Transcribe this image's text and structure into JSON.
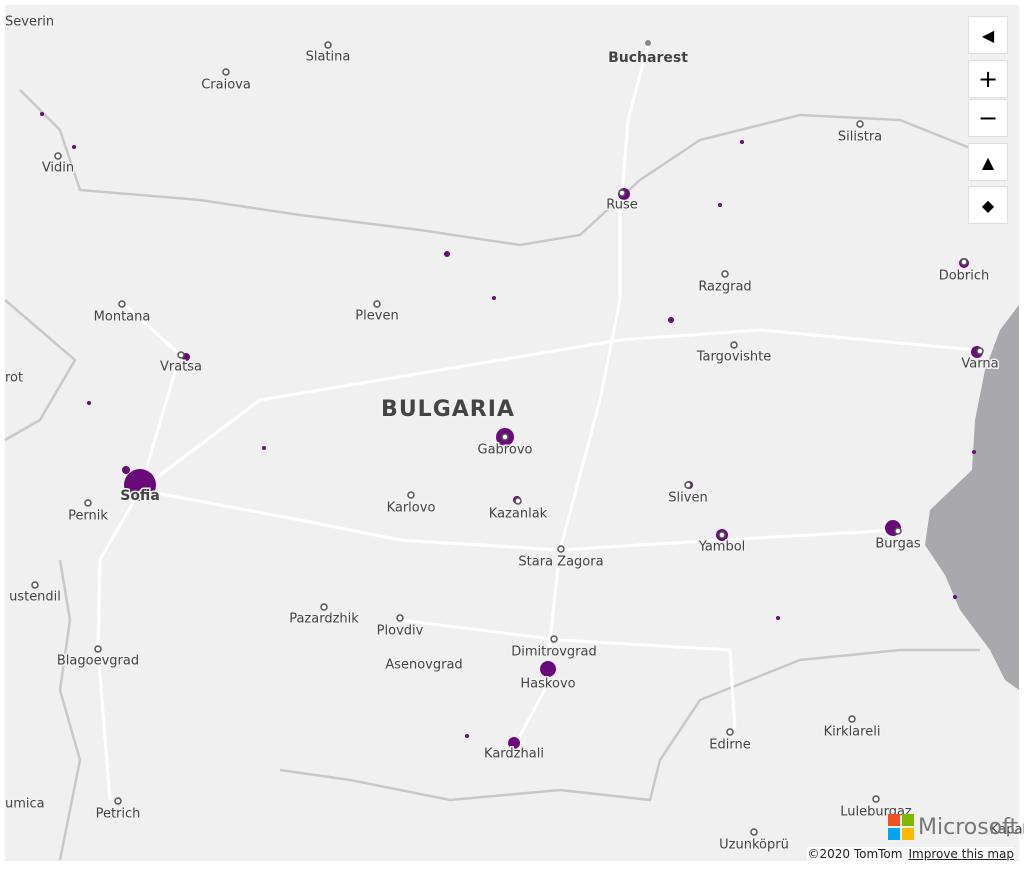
{
  "map": {
    "country": "BULGARIA",
    "capital": "Bucharest",
    "cities": [
      "Severin",
      "Slatina",
      "Craiova",
      "Vidin",
      "Silistra",
      "Ruse",
      "Razgrad",
      "Dobrich",
      "Montana",
      "Pleven",
      "Vratsa",
      "Targovishte",
      "Varna",
      "rot",
      "Gabrovo",
      "Sofia",
      "Pernik",
      "Karlovo",
      "Kazanlak",
      "Sliven",
      "Yambol",
      "Burgas",
      "Stara Zagora",
      "ustendil",
      "Pazardzhik",
      "Plovdiv",
      "Dimitrovgrad",
      "Blagoevgrad",
      "Asenovgrad",
      "Haskovo",
      "Kirklareli",
      "Edirne",
      "Kardzhali",
      "umica",
      "Petrich",
      "Luleburgaz",
      "Uzunköprü",
      "Kapakli"
    ]
  },
  "attribution": {
    "copyright": "©2020 TomTom",
    "link": "Improve this map",
    "logo": "Microsoft"
  }
}
